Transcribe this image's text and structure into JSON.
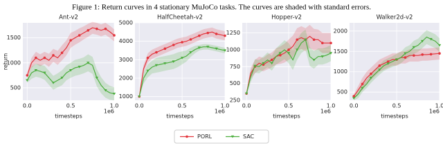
{
  "caption": "Figure 1: Return curves in 4 stationary MuJoCo tasks. The curves are shaded with standard errors.",
  "chart_data": [
    {
      "type": "line",
      "title": "Ant-v2",
      "xlabel": "timesteps",
      "ylabel": "return",
      "x_offset_label": "1e6",
      "grid": true,
      "x": [
        0,
        0.05,
        0.1,
        0.15,
        0.2,
        0.25,
        0.3,
        0.35,
        0.4,
        0.45,
        0.5,
        0.55,
        0.6,
        0.65,
        0.7,
        0.75,
        0.8,
        0.85,
        0.9,
        0.95,
        1.0
      ],
      "xlim": [
        -0.05,
        1.0
      ],
      "xticks": [
        {
          "value": 0,
          "label": "0.0"
        },
        {
          "value": 0.5,
          "label": "0.5"
        },
        {
          "value": 1,
          "label": "1.0"
        }
      ],
      "ylim": [
        250,
        1800
      ],
      "yticks": [
        500,
        1000,
        1500
      ],
      "series": [
        {
          "name": "PORL",
          "color": "#e3343c",
          "marker": "circle",
          "values": [
            750,
            1000,
            1100,
            1050,
            1100,
            1050,
            1150,
            1100,
            1200,
            1300,
            1450,
            1500,
            1550,
            1600,
            1650,
            1700,
            1680,
            1650,
            1680,
            1620,
            1550
          ],
          "errors": [
            60,
            100,
            120,
            120,
            120,
            130,
            130,
            140,
            150,
            150,
            150,
            140,
            140,
            130,
            130,
            120,
            120,
            120,
            120,
            120,
            120
          ]
        },
        {
          "name": "SAC",
          "color": "#4cae3e",
          "marker": "triangle-down",
          "values": [
            650,
            800,
            850,
            830,
            800,
            700,
            600,
            650,
            700,
            800,
            850,
            900,
            920,
            950,
            1000,
            950,
            700,
            550,
            450,
            400,
            380
          ],
          "errors": [
            50,
            120,
            130,
            130,
            140,
            140,
            140,
            140,
            150,
            150,
            150,
            160,
            160,
            160,
            170,
            170,
            170,
            160,
            150,
            140,
            130
          ]
        }
      ]
    },
    {
      "type": "line",
      "title": "HalfCheetah-v2",
      "xlabel": "timesteps",
      "x_offset_label": "1e6",
      "grid": true,
      "x": [
        0,
        0.05,
        0.1,
        0.15,
        0.2,
        0.25,
        0.3,
        0.35,
        0.4,
        0.45,
        0.5,
        0.55,
        0.6,
        0.65,
        0.7,
        0.75,
        0.8,
        0.85,
        0.9,
        0.95,
        1.0
      ],
      "xlim": [
        -0.05,
        1.0
      ],
      "xticks": [
        {
          "value": 0,
          "label": "0.0"
        },
        {
          "value": 0.5,
          "label": "0.5"
        },
        {
          "value": 1,
          "label": "1.0"
        }
      ],
      "ylim": [
        800,
        5000
      ],
      "yticks": [
        1000,
        2000,
        3000,
        4000,
        5000
      ],
      "series": [
        {
          "name": "PORL",
          "color": "#e3343c",
          "marker": "circle",
          "values": [
            1000,
            2500,
            3100,
            3300,
            3400,
            3500,
            3600,
            3700,
            3800,
            3900,
            3950,
            4000,
            4100,
            4200,
            4300,
            4400,
            4450,
            4500,
            4400,
            4350,
            4300
          ],
          "errors": [
            50,
            200,
            250,
            250,
            250,
            250,
            250,
            250,
            250,
            250,
            250,
            250,
            250,
            250,
            250,
            250,
            250,
            250,
            250,
            250,
            250
          ]
        },
        {
          "name": "SAC",
          "color": "#4cae3e",
          "marker": "triangle-down",
          "values": [
            1000,
            2000,
            2400,
            2600,
            2700,
            2750,
            2800,
            2850,
            2900,
            3000,
            3100,
            3200,
            3400,
            3550,
            3650,
            3700,
            3700,
            3650,
            3600,
            3550,
            3500
          ],
          "errors": [
            50,
            300,
            350,
            350,
            400,
            400,
            400,
            400,
            400,
            400,
            350,
            300,
            250,
            200,
            150,
            150,
            150,
            150,
            150,
            150,
            150
          ]
        }
      ]
    },
    {
      "type": "line",
      "title": "Hopper-v2",
      "xlabel": "timesteps",
      "x_offset_label": "1e6",
      "grid": true,
      "x": [
        0,
        0.05,
        0.1,
        0.15,
        0.2,
        0.25,
        0.3,
        0.35,
        0.4,
        0.45,
        0.5,
        0.55,
        0.6,
        0.65,
        0.7,
        0.75,
        0.8,
        0.85,
        0.9,
        0.95,
        1.0
      ],
      "xlim": [
        -0.05,
        1.0
      ],
      "xticks": [
        {
          "value": 0,
          "label": "0.0"
        },
        {
          "value": 0.5,
          "label": "0.5"
        },
        {
          "value": 1,
          "label": "1.0"
        }
      ],
      "ylim": [
        250,
        1400
      ],
      "yticks": [
        250,
        500,
        750,
        1000,
        1250
      ],
      "series": [
        {
          "name": "PORL",
          "color": "#e3343c",
          "marker": "circle",
          "values": [
            350,
            650,
            750,
            800,
            780,
            820,
            850,
            900,
            920,
            950,
            1000,
            1050,
            1150,
            1180,
            1150,
            1200,
            1150,
            1150,
            1100,
            1100,
            1100
          ],
          "errors": [
            30,
            80,
            100,
            100,
            100,
            110,
            110,
            120,
            130,
            140,
            150,
            160,
            170,
            170,
            170,
            170,
            160,
            150,
            150,
            150,
            150
          ]
        },
        {
          "name": "SAC",
          "color": "#4cae3e",
          "marker": "triangle-down",
          "values": [
            350,
            600,
            760,
            750,
            800,
            850,
            800,
            900,
            950,
            1000,
            950,
            850,
            1000,
            1100,
            1150,
            900,
            850,
            900,
            900,
            920,
            950
          ],
          "errors": [
            30,
            80,
            100,
            100,
            100,
            110,
            110,
            120,
            130,
            140,
            150,
            150,
            150,
            150,
            150,
            140,
            130,
            120,
            120,
            120,
            120
          ]
        }
      ]
    },
    {
      "type": "line",
      "title": "Walker2d-v2",
      "xlabel": "timesteps",
      "x_offset_label": "1e6",
      "grid": true,
      "x": [
        0,
        0.05,
        0.1,
        0.15,
        0.2,
        0.25,
        0.3,
        0.35,
        0.4,
        0.45,
        0.5,
        0.55,
        0.6,
        0.65,
        0.7,
        0.75,
        0.8,
        0.85,
        0.9,
        0.95,
        1.0
      ],
      "xlim": [
        -0.05,
        1.0
      ],
      "xticks": [
        {
          "value": 0,
          "label": "0.0"
        },
        {
          "value": 0.5,
          "label": "0.5"
        },
        {
          "value": 1,
          "label": "1.0"
        }
      ],
      "ylim": [
        300,
        2200
      ],
      "yticks": [
        500,
        1000,
        1500,
        2000
      ],
      "series": [
        {
          "name": "PORL",
          "color": "#e3343c",
          "marker": "circle",
          "values": [
            400,
            550,
            700,
            850,
            950,
            1050,
            1150,
            1200,
            1250,
            1300,
            1300,
            1350,
            1350,
            1400,
            1400,
            1400,
            1420,
            1420,
            1430,
            1440,
            1450
          ],
          "errors": [
            50,
            100,
            150,
            150,
            150,
            150,
            150,
            150,
            150,
            150,
            150,
            150,
            150,
            150,
            150,
            150,
            150,
            150,
            150,
            150,
            150
          ]
        },
        {
          "name": "SAC",
          "color": "#4cae3e",
          "marker": "triangle-down",
          "values": [
            350,
            450,
            600,
            700,
            850,
            950,
            1050,
            1150,
            1200,
            1250,
            1300,
            1350,
            1450,
            1500,
            1600,
            1650,
            1750,
            1850,
            1800,
            1750,
            1650
          ],
          "errors": [
            50,
            100,
            100,
            100,
            120,
            120,
            120,
            130,
            130,
            130,
            140,
            140,
            150,
            150,
            160,
            160,
            170,
            170,
            170,
            170,
            170
          ]
        }
      ]
    }
  ]
}
